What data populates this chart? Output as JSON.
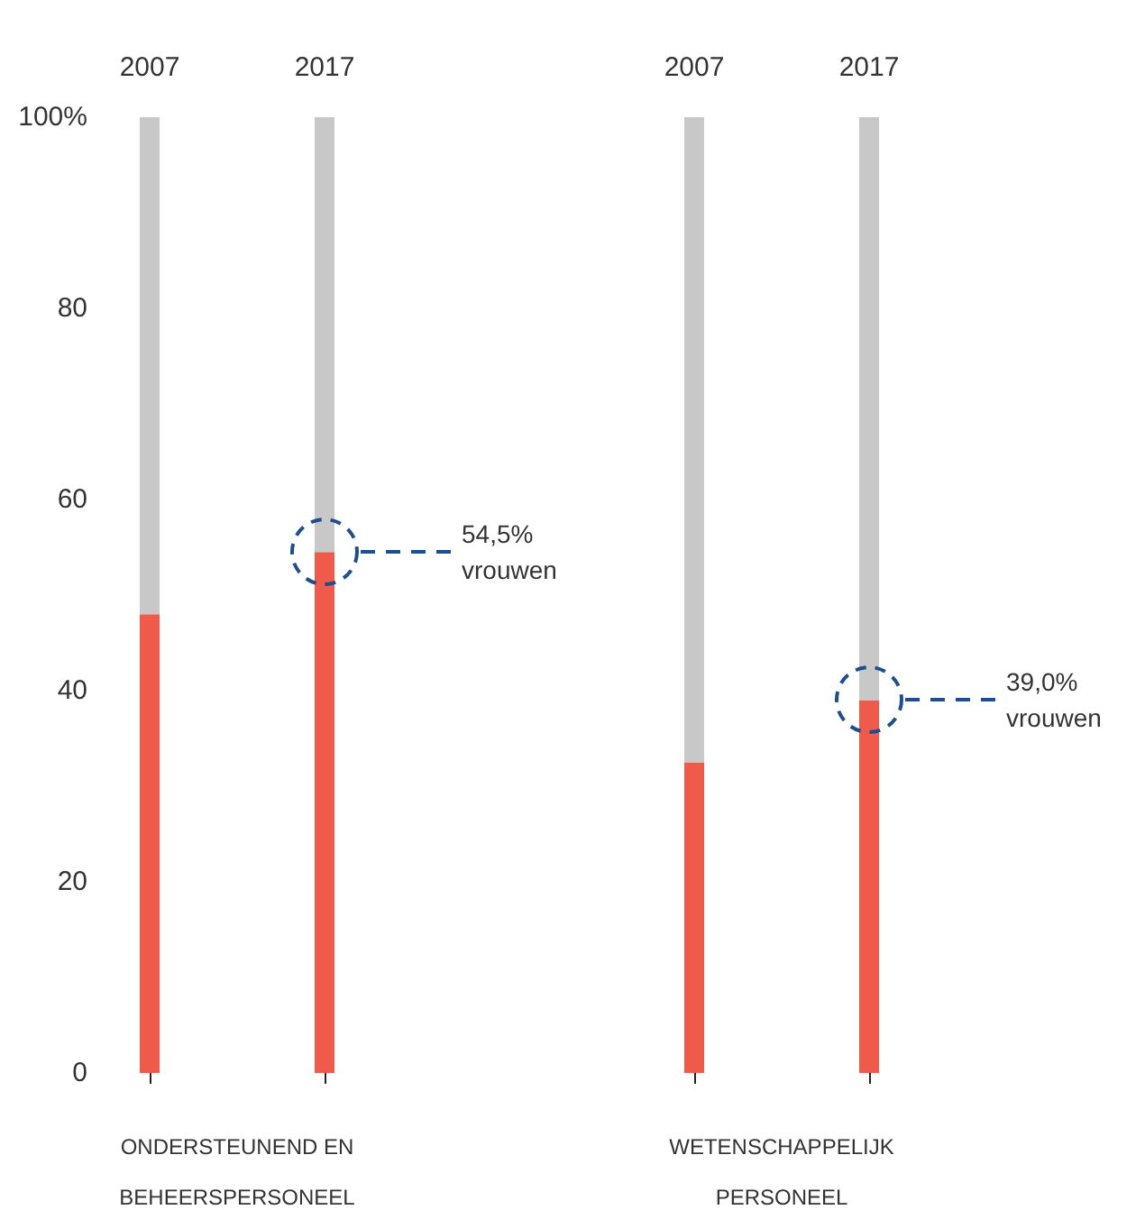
{
  "chart_data": [
    {
      "type": "bar",
      "stacked": true,
      "categories": [
        "2007",
        "2017"
      ],
      "xlabel": "ONDERSTEUNEND EN BEHEERSPERSONEEL",
      "series": [
        {
          "color": "#f05a4b",
          "values": [
            48,
            54.5
          ]
        },
        {
          "color": "#c8c8c8",
          "values": [
            52,
            45.5
          ]
        }
      ],
      "ylim": [
        0,
        100
      ],
      "yticks": [
        0,
        20,
        40,
        60,
        80,
        {
          "value": 100,
          "label": "100%"
        }
      ],
      "grid": false,
      "annotations": [
        "54,5% vrouwen"
      ]
    },
    {
      "type": "bar",
      "stacked": true,
      "categories": [
        "2007",
        "2017"
      ],
      "xlabel": "WETENSCHAPPELIJK PERSONEEL",
      "series": [
        {
          "color": "#f05a4b",
          "values": [
            32.5,
            39.0
          ]
        },
        {
          "color": "#c8c8c8",
          "values": [
            67.5,
            61.0
          ]
        }
      ],
      "ylim": [
        0,
        100
      ],
      "grid": false,
      "tick_labels": "x",
      "annotations": [
        "39,0% vrouwen"
      ]
    }
  ]
}
